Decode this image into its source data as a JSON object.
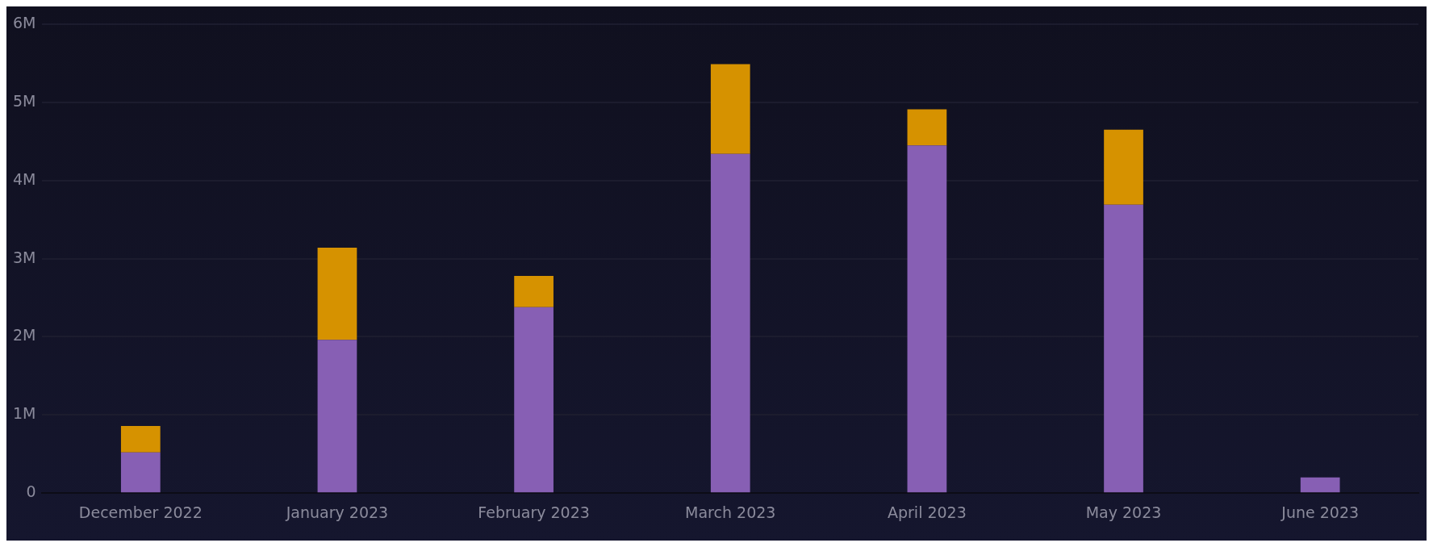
{
  "chart_data": {
    "type": "bar",
    "stacked": true,
    "categories": [
      "December 2022",
      "January 2023",
      "February 2023",
      "March 2023",
      "April 2023",
      "May 2023",
      "June 2023"
    ],
    "series": [
      {
        "color": "#875fb4",
        "values": [
          520000,
          1960000,
          2380000,
          4340000,
          4450000,
          3690000,
          200000
        ]
      },
      {
        "color": "#d69200",
        "values": [
          340000,
          1180000,
          400000,
          1150000,
          460000,
          960000,
          0
        ]
      }
    ],
    "ylim": [
      0,
      6000000
    ],
    "yticks": [
      {
        "value": 0,
        "label": "0"
      },
      {
        "value": 1000000,
        "label": "1M"
      },
      {
        "value": 2000000,
        "label": "2M"
      },
      {
        "value": 3000000,
        "label": "3M"
      },
      {
        "value": 4000000,
        "label": "4M"
      },
      {
        "value": 5000000,
        "label": "5M"
      },
      {
        "value": 6000000,
        "label": "6M"
      }
    ],
    "grid": "y"
  }
}
